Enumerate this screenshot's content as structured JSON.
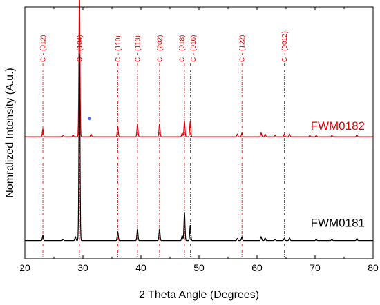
{
  "chart_data": {
    "type": "line",
    "xlabel": "2 Theta Angle (Degrees)",
    "ylabel": "Nomralized Intensity (A.u.)",
    "xlim": [
      20,
      80
    ],
    "xticks": [
      "20",
      "30",
      "40",
      "50",
      "60",
      "70",
      "80"
    ],
    "yticks": [],
    "grid": false,
    "colors": {
      "FWM0182": "#e00000",
      "FWM0181": "#000000",
      "marker": "#4d6ee6",
      "reference": "#e00000"
    },
    "reference_lines": [
      {
        "label": "C - (012)",
        "x": 23.1
      },
      {
        "label": "C - (104)",
        "x": 29.4
      },
      {
        "label": "C - (110)",
        "x": 36.0
      },
      {
        "label": "C - (113)",
        "x": 39.4
      },
      {
        "label": "C - (202)",
        "x": 43.2
      },
      {
        "label": "C - (018)",
        "x": 47.5
      },
      {
        "label": "C - (016)",
        "x": 48.5
      },
      {
        "label": "C - (122)",
        "x": 57.4
      },
      {
        "label": "C - (0012)",
        "x": 64.7
      }
    ],
    "marker": {
      "symbol": "*",
      "x": 31.5,
      "y": 0.07
    },
    "series": [
      {
        "name": "FWM0182",
        "offset": 0.0,
        "peaks": [
          {
            "x": 23.1,
            "y": 0.03
          },
          {
            "x": 26.6,
            "y": 0.005
          },
          {
            "x": 28.3,
            "y": 0.008
          },
          {
            "x": 29.4,
            "y": 0.58
          },
          {
            "x": 31.4,
            "y": 0.01
          },
          {
            "x": 36.0,
            "y": 0.04
          },
          {
            "x": 39.4,
            "y": 0.05
          },
          {
            "x": 43.2,
            "y": 0.05
          },
          {
            "x": 47.1,
            "y": 0.015
          },
          {
            "x": 47.5,
            "y": 0.06
          },
          {
            "x": 48.5,
            "y": 0.06
          },
          {
            "x": 56.6,
            "y": 0.01
          },
          {
            "x": 57.4,
            "y": 0.015
          },
          {
            "x": 60.7,
            "y": 0.015
          },
          {
            "x": 61.4,
            "y": 0.01
          },
          {
            "x": 63.1,
            "y": 0.005
          },
          {
            "x": 64.7,
            "y": 0.01
          },
          {
            "x": 65.6,
            "y": 0.01
          },
          {
            "x": 69.1,
            "y": 0.005
          },
          {
            "x": 70.2,
            "y": 0.005
          },
          {
            "x": 72.9,
            "y": 0.005
          },
          {
            "x": 77.2,
            "y": 0.008
          }
        ]
      },
      {
        "name": "FWM0181",
        "offset": -0.4,
        "peaks": [
          {
            "x": 23.1,
            "y": 0.02
          },
          {
            "x": 26.6,
            "y": 0.005
          },
          {
            "x": 28.7,
            "y": 0.015
          },
          {
            "x": 29.4,
            "y": 0.72
          },
          {
            "x": 36.0,
            "y": 0.035
          },
          {
            "x": 39.4,
            "y": 0.045
          },
          {
            "x": 43.2,
            "y": 0.045
          },
          {
            "x": 47.1,
            "y": 0.02
          },
          {
            "x": 47.5,
            "y": 0.11
          },
          {
            "x": 48.5,
            "y": 0.06
          },
          {
            "x": 56.6,
            "y": 0.008
          },
          {
            "x": 57.4,
            "y": 0.015
          },
          {
            "x": 60.7,
            "y": 0.015
          },
          {
            "x": 61.4,
            "y": 0.01
          },
          {
            "x": 63.1,
            "y": 0.005
          },
          {
            "x": 64.7,
            "y": 0.008
          },
          {
            "x": 65.6,
            "y": 0.01
          },
          {
            "x": 70.2,
            "y": 0.005
          },
          {
            "x": 72.9,
            "y": 0.005
          },
          {
            "x": 77.2,
            "y": 0.008
          }
        ]
      }
    ],
    "ylim": [
      -0.47,
      0.5
    ]
  }
}
